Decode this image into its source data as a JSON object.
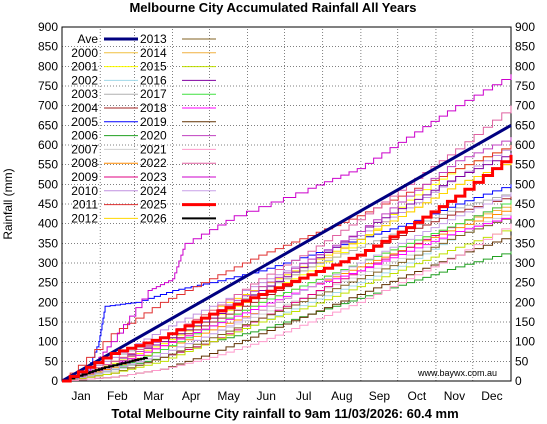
{
  "chart_data": {
    "type": "line",
    "title": "Melbourne City Accumulated Rainfall All Years",
    "ylabel": "Rainfall (mm)",
    "footer": "Total Melbourne City rainfall to 9am 11/03/2026: 60.4 mm",
    "credit": "www.baywx.com.au",
    "ylim": [
      0,
      900
    ],
    "yticks": [
      0,
      50,
      100,
      150,
      200,
      250,
      300,
      350,
      400,
      450,
      500,
      550,
      600,
      650,
      700,
      750,
      800,
      850,
      900
    ],
    "xlim": [
      0,
      365
    ],
    "months": [
      "Jan",
      "Feb",
      "Mar",
      "Apr",
      "May",
      "Jun",
      "Jul",
      "Aug",
      "Sep",
      "Oct",
      "Nov",
      "Dec"
    ],
    "month_starts": [
      0,
      31,
      59,
      90,
      120,
      151,
      181,
      212,
      243,
      273,
      304,
      334,
      365
    ],
    "grid": true,
    "legend_position": "top-left",
    "series": [
      {
        "name": "Ave",
        "color": "#000080",
        "width": 3,
        "x": [
          0,
          365
        ],
        "y": [
          0,
          650
        ]
      },
      {
        "name": "2000",
        "color": "#f0c040",
        "width": 1,
        "x": [
          0,
          40,
          80,
          120,
          160,
          200,
          240,
          280,
          320,
          365
        ],
        "y": [
          0,
          50,
          100,
          160,
          230,
          290,
          360,
          430,
          500,
          560
        ]
      },
      {
        "name": "2001",
        "color": "#ffff00",
        "width": 1,
        "x": [
          0,
          40,
          80,
          120,
          160,
          200,
          240,
          280,
          320,
          365
        ],
        "y": [
          0,
          45,
          95,
          160,
          220,
          280,
          350,
          460,
          540,
          600
        ]
      },
      {
        "name": "2002",
        "color": "#a0d8e8",
        "width": 1,
        "x": [
          0,
          40,
          80,
          120,
          160,
          200,
          240,
          280,
          320,
          365
        ],
        "y": [
          0,
          30,
          60,
          100,
          150,
          200,
          250,
          300,
          370,
          420
        ]
      },
      {
        "name": "2003",
        "color": "#b0b0b0",
        "width": 1,
        "x": [
          0,
          40,
          80,
          120,
          160,
          200,
          240,
          280,
          320,
          365
        ],
        "y": [
          0,
          60,
          110,
          170,
          230,
          290,
          340,
          390,
          440,
          480
        ]
      },
      {
        "name": "2004",
        "color": "#a02020",
        "width": 1,
        "x": [
          0,
          40,
          80,
          120,
          160,
          200,
          240,
          280,
          320,
          365
        ],
        "y": [
          0,
          40,
          90,
          150,
          210,
          270,
          320,
          380,
          430,
          470
        ]
      },
      {
        "name": "2005",
        "color": "#0000ff",
        "width": 1,
        "x": [
          0,
          20,
          30,
          35,
          60,
          90,
          120,
          160,
          200,
          240,
          280,
          320,
          365
        ],
        "y": [
          0,
          20,
          100,
          190,
          200,
          230,
          250,
          280,
          320,
          360,
          400,
          450,
          500
        ]
      },
      {
        "name": "2006",
        "color": "#20a020",
        "width": 1,
        "x": [
          0,
          40,
          80,
          120,
          160,
          200,
          240,
          280,
          320,
          365
        ],
        "y": [
          0,
          30,
          60,
          100,
          130,
          170,
          210,
          250,
          290,
          330
        ]
      },
      {
        "name": "2007",
        "color": "#d0d0d0",
        "width": 1,
        "x": [
          0,
          40,
          80,
          120,
          160,
          200,
          240,
          280,
          320,
          365
        ],
        "y": [
          0,
          25,
          70,
          120,
          170,
          220,
          270,
          320,
          380,
          430
        ]
      },
      {
        "name": "2008",
        "color": "#ff8c00",
        "width": 1,
        "x": [
          0,
          40,
          80,
          120,
          160,
          200,
          240,
          280,
          320,
          365
        ],
        "y": [
          0,
          35,
          80,
          130,
          180,
          240,
          290,
          340,
          390,
          440
        ]
      },
      {
        "name": "2009",
        "color": "#e00080",
        "width": 1,
        "x": [
          0,
          40,
          80,
          120,
          160,
          200,
          240,
          280,
          320,
          365
        ],
        "y": [
          0,
          20,
          60,
          100,
          160,
          220,
          280,
          340,
          400,
          460
        ]
      },
      {
        "name": "2010",
        "color": "#c090e0",
        "width": 1,
        "x": [
          0,
          40,
          80,
          120,
          160,
          200,
          240,
          280,
          320,
          365
        ],
        "y": [
          0,
          60,
          130,
          190,
          250,
          310,
          370,
          440,
          520,
          600
        ]
      },
      {
        "name": "2011",
        "color": "#e03030",
        "width": 1,
        "x": [
          0,
          40,
          80,
          120,
          160,
          200,
          240,
          280,
          320,
          365
        ],
        "y": [
          0,
          120,
          200,
          260,
          320,
          370,
          420,
          480,
          540,
          600
        ]
      },
      {
        "name": "2012",
        "color": "#ffd700",
        "width": 1,
        "x": [
          0,
          40,
          80,
          120,
          160,
          200,
          240,
          280,
          320,
          365
        ],
        "y": [
          0,
          50,
          110,
          180,
          240,
          300,
          360,
          430,
          500,
          560
        ]
      },
      {
        "name": "2013",
        "color": "#806020",
        "width": 1,
        "x": [
          0,
          40,
          80,
          120,
          160,
          200,
          240,
          280,
          320,
          365
        ],
        "y": [
          0,
          20,
          60,
          110,
          160,
          210,
          260,
          310,
          370,
          420
        ]
      },
      {
        "name": "2014",
        "color": "#f0b040",
        "width": 1,
        "x": [
          0,
          40,
          80,
          120,
          160,
          200,
          240,
          280,
          320,
          365
        ],
        "y": [
          0,
          40,
          90,
          140,
          200,
          250,
          300,
          350,
          400,
          450
        ]
      },
      {
        "name": "2015",
        "color": "#c0e000",
        "width": 1,
        "x": [
          0,
          40,
          80,
          120,
          160,
          200,
          240,
          280,
          320,
          365
        ],
        "y": [
          0,
          20,
          50,
          100,
          150,
          190,
          240,
          290,
          340,
          390
        ]
      },
      {
        "name": "2016",
        "color": "#8000a0",
        "width": 1,
        "x": [
          0,
          40,
          80,
          120,
          160,
          200,
          240,
          280,
          320,
          365
        ],
        "y": [
          0,
          50,
          100,
          160,
          230,
          300,
          380,
          450,
          520,
          580
        ]
      },
      {
        "name": "2017",
        "color": "#40e040",
        "width": 1,
        "x": [
          0,
          40,
          80,
          120,
          160,
          200,
          240,
          280,
          320,
          365
        ],
        "y": [
          0,
          30,
          80,
          140,
          200,
          250,
          300,
          350,
          400,
          460
        ]
      },
      {
        "name": "2018",
        "color": "#ff00ff",
        "width": 1,
        "x": [
          0,
          40,
          80,
          120,
          160,
          200,
          240,
          280,
          320,
          365
        ],
        "y": [
          0,
          40,
          90,
          140,
          190,
          240,
          280,
          330,
          380,
          420
        ]
      },
      {
        "name": "2019",
        "color": "#603000",
        "width": 1,
        "x": [
          0,
          40,
          80,
          120,
          160,
          200,
          240,
          280,
          320,
          365
        ],
        "y": [
          0,
          10,
          30,
          70,
          120,
          170,
          220,
          270,
          320,
          370
        ]
      },
      {
        "name": "2020",
        "color": "#c040c0",
        "width": 1,
        "x": [
          0,
          40,
          80,
          120,
          160,
          200,
          240,
          280,
          320,
          365
        ],
        "y": [
          0,
          40,
          110,
          170,
          240,
          310,
          380,
          470,
          560,
          620
        ]
      },
      {
        "name": "2021",
        "color": "#ff99cc",
        "width": 1,
        "x": [
          0,
          40,
          80,
          120,
          160,
          200,
          240,
          280,
          320,
          365
        ],
        "y": [
          0,
          10,
          30,
          60,
          100,
          150,
          200,
          260,
          320,
          400
        ]
      },
      {
        "name": "2022",
        "color": "#e060a0",
        "width": 1,
        "x": [
          0,
          40,
          80,
          120,
          160,
          200,
          240,
          280,
          320,
          365
        ],
        "y": [
          0,
          50,
          110,
          180,
          260,
          330,
          410,
          500,
          590,
          700
        ]
      },
      {
        "name": "2023",
        "color": "#cc00cc",
        "width": 1,
        "x": [
          0,
          20,
          40,
          70,
          90,
          100,
          140,
          200,
          240,
          280,
          320,
          365
        ],
        "y": [
          0,
          20,
          100,
          230,
          260,
          350,
          420,
          490,
          540,
          620,
          700,
          780
        ]
      },
      {
        "name": "2024",
        "color": "#c8a0e8",
        "width": 1,
        "x": [
          0,
          40,
          80,
          120,
          160,
          200,
          240,
          280,
          320,
          365
        ],
        "y": [
          0,
          30,
          70,
          120,
          180,
          240,
          300,
          360,
          420,
          480
        ]
      },
      {
        "name": "2025",
        "color": "#ff0000",
        "width": 3,
        "x": [
          0,
          40,
          80,
          120,
          160,
          200,
          240,
          280,
          320,
          365
        ],
        "y": [
          0,
          70,
          110,
          170,
          220,
          270,
          320,
          390,
          470,
          575
        ]
      },
      {
        "name": "2026",
        "color": "#000000",
        "width": 2,
        "x": [
          0,
          20,
          35,
          55,
          69
        ],
        "y": [
          0,
          20,
          35,
          50,
          60
        ]
      }
    ]
  }
}
